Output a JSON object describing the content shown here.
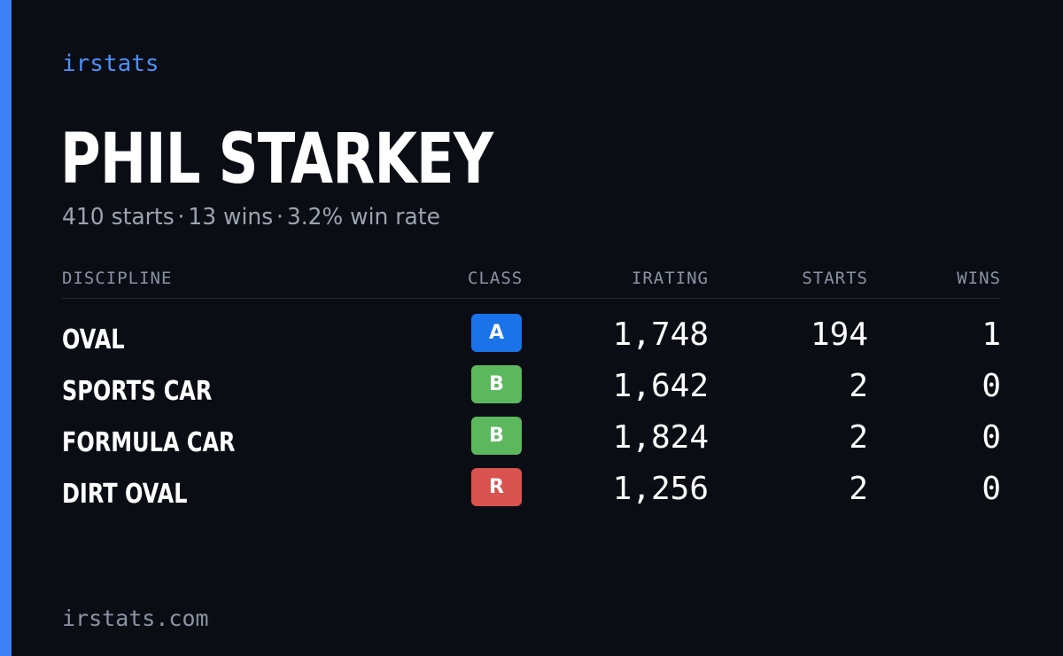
{
  "brand": "irstats",
  "driver": {
    "name": "PHIL STARKEY",
    "starts_text": "410 starts",
    "wins_text": "13 wins",
    "win_rate_text": "3.2% win rate",
    "separator": "·"
  },
  "table": {
    "headers": {
      "discipline": "DISCIPLINE",
      "class": "CLASS",
      "irating": "IRATING",
      "starts": "STARTS",
      "wins": "WINS"
    },
    "rows": [
      {
        "discipline": "OVAL",
        "class": "A",
        "class_color": "#1a73e8",
        "irating": "1,748",
        "starts": "194",
        "wins": "1"
      },
      {
        "discipline": "SPORTS CAR",
        "class": "B",
        "class_color": "#5cb85c",
        "irating": "1,642",
        "starts": "2",
        "wins": "0"
      },
      {
        "discipline": "FORMULA CAR",
        "class": "B",
        "class_color": "#5cb85c",
        "irating": "1,824",
        "starts": "2",
        "wins": "0"
      },
      {
        "discipline": "DIRT OVAL",
        "class": "R",
        "class_color": "#d9534f",
        "irating": "1,256",
        "starts": "2",
        "wins": "0"
      }
    ]
  },
  "footer": {
    "url": "irstats.com"
  },
  "colors": {
    "background": "#0a0d14",
    "accent": "#3b82f6",
    "brand": "#4f8ff7",
    "muted_text": "#9ca3af"
  }
}
